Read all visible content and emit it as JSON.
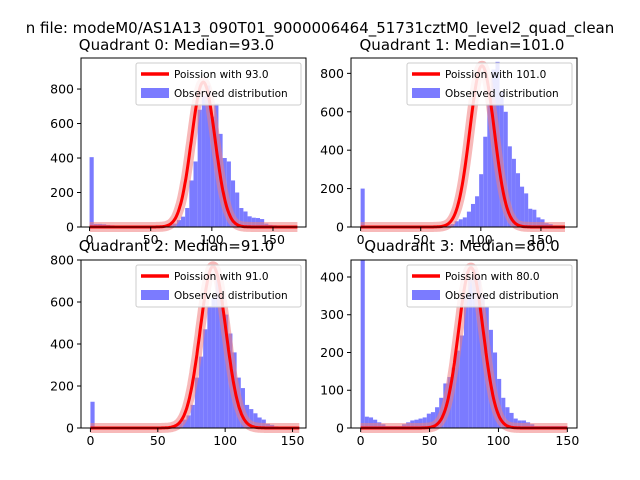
{
  "figure": {
    "suptitle": "n file: modeM0/AS1A13_090T01_9000006464_51731cztM0_level2_quad_clean"
  },
  "colors": {
    "poisson": "#ff0000",
    "poisson_glow": "#f08080",
    "histogram": "#7b7bff"
  },
  "chart_data": [
    {
      "type": "bar",
      "title": "Quadrant 0: Median=93.0",
      "legend_position": "top-right",
      "legend": [
        "Poission with 93.0",
        "Observed distribution"
      ],
      "xlim": [
        -7,
        177
      ],
      "ylim": [
        0,
        980
      ],
      "xticks": [
        0,
        50,
        100,
        150
      ],
      "yticks": [
        0,
        200,
        400,
        600,
        800
      ],
      "poisson_mean": 93,
      "poisson_peak": 840,
      "poisson_range": [
        0,
        170
      ],
      "bin_width": 3.4,
      "bins_start": 0,
      "values": [
        405,
        18,
        18,
        16,
        12,
        10,
        8,
        6,
        5,
        5,
        5,
        5,
        5,
        5,
        5,
        5,
        5,
        5,
        8,
        12,
        20,
        40,
        60,
        110,
        270,
        380,
        680,
        760,
        820,
        640,
        715,
        540,
        400,
        380,
        270,
        200,
        110,
        90,
        62,
        54,
        52,
        46,
        20,
        12,
        10,
        5,
        5,
        5,
        5,
        5
      ]
    },
    {
      "type": "bar",
      "title": "Quadrant 1: Median=101.0",
      "legend_position": "top-right",
      "legend": [
        "Poission with 101.0",
        "Observed distribution"
      ],
      "xlim": [
        -8,
        180
      ],
      "ylim": [
        0,
        880
      ],
      "xticks": [
        0,
        50,
        100,
        150
      ],
      "poisson_mean": 101,
      "poisson_peak": 840,
      "poisson_range": [
        0,
        170
      ],
      "yticks": [
        0,
        200,
        400,
        600,
        800
      ],
      "bin_width": 3.4,
      "bins_start": 0,
      "values": [
        200,
        5,
        5,
        5,
        5,
        5,
        5,
        5,
        5,
        5,
        5,
        5,
        5,
        5,
        5,
        5,
        5,
        5,
        5,
        5,
        8,
        10,
        15,
        30,
        40,
        50,
        80,
        120,
        160,
        275,
        470,
        640,
        820,
        860,
        705,
        600,
        420,
        355,
        280,
        210,
        175,
        95,
        90,
        50,
        40,
        20,
        15,
        8,
        5,
        5
      ]
    },
    {
      "type": "bar",
      "title": "Quadrant 2: Median=91.0",
      "legend_position": "top-right",
      "legend": [
        "Poission with 91.0",
        "Observed distribution"
      ],
      "xlim": [
        -7,
        160
      ],
      "ylim": [
        0,
        800
      ],
      "xticks": [
        0,
        50,
        100,
        150
      ],
      "yticks": [
        0,
        200,
        400,
        600,
        800
      ],
      "poisson_mean": 91,
      "poisson_peak": 770,
      "poisson_range": [
        0,
        155
      ],
      "bin_width": 3.1,
      "bins_start": 0,
      "values": [
        125,
        5,
        5,
        5,
        5,
        5,
        5,
        5,
        5,
        5,
        5,
        5,
        5,
        5,
        5,
        5,
        5,
        5,
        5,
        10,
        15,
        25,
        40,
        60,
        110,
        240,
        340,
        470,
        580,
        620,
        705,
        635,
        540,
        450,
        360,
        240,
        190,
        110,
        90,
        70,
        50,
        40,
        20,
        15,
        8,
        5,
        5,
        5,
        5,
        5
      ]
    },
    {
      "type": "bar",
      "title": "Quadrant 3: Median=80.0",
      "legend_position": "top-right",
      "legend": [
        "Poission with 80.0",
        "Observed distribution"
      ],
      "xlim": [
        -7,
        157
      ],
      "ylim": [
        0,
        445
      ],
      "xticks": [
        0,
        50,
        100,
        150
      ],
      "yticks": [
        0,
        100,
        200,
        300,
        400
      ],
      "poisson_mean": 80,
      "poisson_peak": 425,
      "poisson_range": [
        0,
        150
      ],
      "bin_width": 3.0,
      "bins_start": 0,
      "values": [
        445,
        30,
        28,
        22,
        15,
        10,
        5,
        5,
        5,
        5,
        10,
        15,
        20,
        22,
        25,
        28,
        38,
        42,
        55,
        80,
        118,
        135,
        160,
        205,
        245,
        355,
        395,
        420,
        400,
        350,
        320,
        260,
        200,
        130,
        80,
        55,
        40,
        25,
        20,
        20,
        15,
        10,
        5,
        5,
        5,
        5,
        5,
        5,
        5,
        5
      ]
    }
  ]
}
